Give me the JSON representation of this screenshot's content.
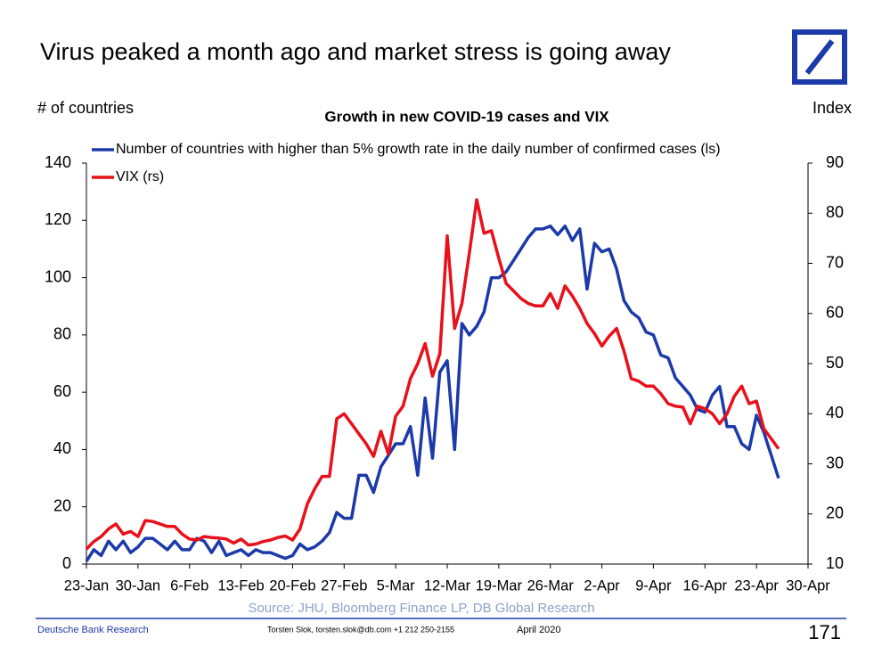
{
  "chart_data": {
    "type": "line",
    "title": "Virus peaked a month ago and market stress is going away",
    "subtitle": "Growth in new COVID-19 cases and VIX",
    "y_label": "# of countries",
    "y2_label": "Index",
    "source": "Source: JHU, Bloomberg Finance LP, DB Global Research",
    "footer": {
      "left": "Deutsche Bank Research",
      "author": "Torsten Slok, torsten.slok@db.com  +1 212 250-2155",
      "date": "April 2020",
      "page": "171"
    },
    "categories": [
      "23-Jan",
      null,
      null,
      null,
      null,
      null,
      null,
      "30-Jan",
      null,
      null,
      null,
      null,
      null,
      null,
      "6-Feb",
      null,
      null,
      null,
      null,
      null,
      null,
      "13-Feb",
      null,
      null,
      null,
      null,
      null,
      null,
      "20-Feb",
      null,
      null,
      null,
      null,
      null,
      null,
      "27-Feb",
      null,
      null,
      null,
      null,
      null,
      null,
      "5-Mar",
      null,
      null,
      null,
      null,
      null,
      null,
      "12-Mar",
      null,
      null,
      null,
      null,
      null,
      null,
      "19-Mar",
      null,
      null,
      null,
      null,
      null,
      null,
      "26-Mar",
      null,
      null,
      null,
      null,
      null,
      null,
      "2-Apr",
      null,
      null,
      null,
      null,
      null,
      null,
      "9-Apr",
      null,
      null,
      null,
      null,
      null,
      null,
      "16-Apr",
      null,
      null,
      null,
      null,
      null,
      null,
      "23-Apr",
      null,
      null,
      null,
      null,
      null,
      null,
      "30-Apr"
    ],
    "series": [
      {
        "name": "Number of countries with higher than 5% growth rate in the daily number of confirmed cases (ls)",
        "color": "#1c3aa9",
        "axis": "y",
        "values": [
          1,
          5,
          3,
          8,
          5,
          8,
          4,
          6,
          9,
          9,
          7,
          5,
          8,
          5,
          5,
          9,
          8,
          4,
          8,
          3,
          4,
          5,
          3,
          5,
          4,
          4,
          3,
          2,
          3,
          7,
          5,
          6,
          8,
          11,
          18,
          16,
          16,
          31,
          31,
          25,
          34,
          38,
          42,
          42,
          48,
          31,
          58,
          37,
          67,
          71,
          40,
          84,
          80,
          83,
          88,
          100,
          100,
          102,
          106,
          110,
          114,
          117,
          117,
          118,
          115,
          118,
          113,
          117,
          96,
          112,
          109,
          110,
          103,
          92,
          88,
          86,
          81,
          80,
          73,
          72,
          65,
          62,
          59,
          54,
          53,
          59,
          62,
          48,
          48,
          42,
          40,
          52,
          46,
          38,
          30,
          null,
          null,
          null,
          null
        ]
      },
      {
        "name": "VIX (rs)",
        "color": "#e8101a",
        "axis": "y2",
        "values": [
          13,
          14.5,
          15.5,
          17,
          18,
          16,
          16.5,
          15.5,
          18.7,
          18.5,
          18,
          17.5,
          17.5,
          16,
          15,
          14.8,
          15.5,
          15.3,
          15.2,
          15,
          14.2,
          15,
          13.8,
          14,
          14.5,
          14.8,
          15.3,
          15.6,
          14.8,
          17,
          22,
          25,
          27.5,
          27.5,
          39,
          40,
          38,
          36,
          34,
          31.5,
          36.5,
          32,
          39.5,
          41.5,
          47,
          50,
          54,
          47.5,
          52,
          75.5,
          57,
          62,
          72,
          82.7,
          76,
          76.5,
          71,
          66,
          64.5,
          63,
          62,
          61.5,
          61.5,
          64,
          61,
          65.5,
          63.5,
          61,
          58,
          56,
          53.5,
          55.5,
          57,
          52.5,
          47,
          46.5,
          45.5,
          45.5,
          44,
          42,
          41.5,
          41.3,
          38,
          41.5,
          41,
          40,
          38,
          40,
          43.5,
          45.5,
          42,
          42.5,
          37,
          35,
          33,
          null,
          null,
          null,
          null
        ]
      }
    ],
    "ylim": [
      0,
      140
    ],
    "yticks": [
      0,
      20,
      40,
      60,
      80,
      100,
      120,
      140
    ],
    "y2lim": [
      10,
      90
    ],
    "y2ticks": [
      10,
      20,
      30,
      40,
      50,
      60,
      70,
      80,
      90
    ],
    "grid": false
  }
}
